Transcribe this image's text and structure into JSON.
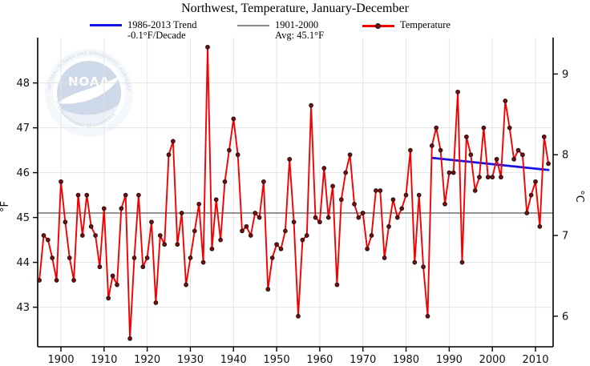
{
  "title": "Northwest, Temperature, January-December",
  "legend": [
    {
      "label_line1": "1986-2013 Trend",
      "label_line2": "-0.1°F/Decade",
      "color": "#1414e8"
    },
    {
      "label_line1": "1901-2000",
      "label_line2": "Avg: 45.1°F",
      "color": "#8a8a8a"
    },
    {
      "label_line1": "Temperature",
      "label_line2": "",
      "color": "#f40000"
    }
  ],
  "watermark": {
    "text": "NOAA",
    "ring_top": "NATIONAL OCEANIC AND ATMOSPHERIC ADMINISTRATION",
    "ring_bottom": "U.S. DEPARTMENT OF COMMERCE"
  },
  "chart_data": {
    "type": "line",
    "title": "Northwest, Temperature, January-December",
    "x_start_year": 1895,
    "x_end_year": 2013,
    "series": [
      {
        "name": "Temperature",
        "color": "#f40000",
        "marker_color": "#7a0c0c",
        "values": [
          43.6,
          44.6,
          44.5,
          44.1,
          43.6,
          45.8,
          44.9,
          44.1,
          43.6,
          45.5,
          44.6,
          45.5,
          44.8,
          44.6,
          43.9,
          45.2,
          43.2,
          43.7,
          43.5,
          45.2,
          45.5,
          42.3,
          44.1,
          45.5,
          43.9,
          44.1,
          44.9,
          43.1,
          44.6,
          44.4,
          46.4,
          46.7,
          44.4,
          45.1,
          43.5,
          44.1,
          44.7,
          45.3,
          44.0,
          48.8,
          44.3,
          45.4,
          44.5,
          45.8,
          46.5,
          47.2,
          46.4,
          44.7,
          44.8,
          44.6,
          45.1,
          45.0,
          45.8,
          43.4,
          44.1,
          44.4,
          44.3,
          44.7,
          46.3,
          44.9,
          42.8,
          44.5,
          44.6,
          47.5,
          45.0,
          44.9,
          46.1,
          45.0,
          45.7,
          43.5,
          45.4,
          46.0,
          46.4,
          45.3,
          45.0,
          45.1,
          44.3,
          44.6,
          45.6,
          45.6,
          44.1,
          44.8,
          45.4,
          45.0,
          45.2,
          45.5,
          46.5,
          44.0,
          45.5,
          43.9,
          42.8,
          46.6,
          47.0,
          46.5,
          45.3,
          46.0,
          46.0,
          47.8,
          44.0,
          46.8,
          46.4,
          45.6,
          45.9,
          47.0,
          45.9,
          45.9,
          46.3,
          45.9,
          47.6,
          47.0,
          46.3,
          46.5,
          46.4,
          45.1,
          45.5,
          45.8,
          44.8,
          46.8,
          46.2
        ]
      }
    ],
    "avg_line": {
      "label": "1901-2000 Avg",
      "value": 45.1,
      "color": "#707070"
    },
    "trend_line": {
      "label": "1986-2013 Trend",
      "rate_per_decade": -0.1,
      "start_year": 1986,
      "end_year": 2013,
      "start_value": 46.33,
      "end_value": 46.06,
      "color": "#1414e8"
    },
    "y_axis_left": {
      "label": "°F",
      "ticks": [
        43,
        44,
        45,
        46,
        47,
        48
      ],
      "range": [
        42.1,
        49.0
      ]
    },
    "y_axis_right": {
      "label": "°C",
      "ticks": [
        6,
        7,
        8,
        9
      ]
    },
    "x_axis": {
      "ticks": [
        1900,
        1910,
        1920,
        1930,
        1940,
        1950,
        1960,
        1970,
        1980,
        1990,
        2000,
        2010
      ]
    },
    "grid": true,
    "legend_position": "top"
  }
}
